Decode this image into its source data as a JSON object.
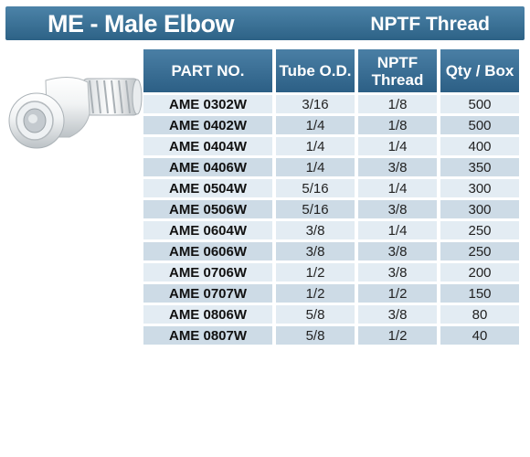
{
  "title": "ME - Male Elbow",
  "subtitle": "NPTF Thread",
  "product_image": "white-male-elbow-fitting",
  "headers": [
    "PART NO.",
    "Tube O.D.",
    "NPTF\nThread",
    "Qty / Box"
  ],
  "colors": {
    "header": "#2d6286",
    "row_light": "#e3ecf3",
    "row_dark": "#cddbe6"
  },
  "rows": [
    {
      "part": "AME 0302W",
      "tube": "3/16",
      "thread": "1/8",
      "qty": "500"
    },
    {
      "part": "AME 0402W",
      "tube": "1/4",
      "thread": "1/8",
      "qty": "500"
    },
    {
      "part": "AME 0404W",
      "tube": "1/4",
      "thread": "1/4",
      "qty": "400"
    },
    {
      "part": "AME 0406W",
      "tube": "1/4",
      "thread": "3/8",
      "qty": "350"
    },
    {
      "part": "AME 0504W",
      "tube": "5/16",
      "thread": "1/4",
      "qty": "300"
    },
    {
      "part": "AME 0506W",
      "tube": "5/16",
      "thread": "3/8",
      "qty": "300"
    },
    {
      "part": "AME 0604W",
      "tube": "3/8",
      "thread": "1/4",
      "qty": "250"
    },
    {
      "part": "AME 0606W",
      "tube": "3/8",
      "thread": "3/8",
      "qty": "250"
    },
    {
      "part": "AME 0706W",
      "tube": "1/2",
      "thread": "3/8",
      "qty": "200"
    },
    {
      "part": "AME 0707W",
      "tube": "1/2",
      "thread": "1/2",
      "qty": "150"
    },
    {
      "part": "AME 0806W",
      "tube": "5/8",
      "thread": "3/8",
      "qty": "80"
    },
    {
      "part": "AME 0807W",
      "tube": "5/8",
      "thread": "1/2",
      "qty": "40"
    }
  ]
}
